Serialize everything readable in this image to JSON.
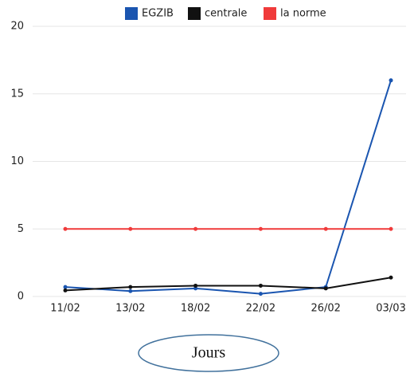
{
  "chart_data": {
    "type": "line",
    "categories": [
      "11/02",
      "13/02",
      "18/02",
      "22/02",
      "26/02",
      "03/03"
    ],
    "series": [
      {
        "name": "EGZIB",
        "color": "#1a55b0",
        "values": [
          0.7,
          0.4,
          0.6,
          0.2,
          0.7,
          16
        ]
      },
      {
        "name": "centrale",
        "color": "#111111",
        "values": [
          0.45,
          0.7,
          0.8,
          0.8,
          0.6,
          1.4
        ]
      },
      {
        "name": "la norme",
        "color": "#f03a3a",
        "values": [
          5,
          5,
          5,
          5,
          5,
          5
        ]
      }
    ],
    "xlabel": "Jours",
    "ylim": [
      0,
      20
    ],
    "yticks": [
      0,
      5,
      10,
      15,
      20
    ],
    "grid": true,
    "legend": "top"
  }
}
